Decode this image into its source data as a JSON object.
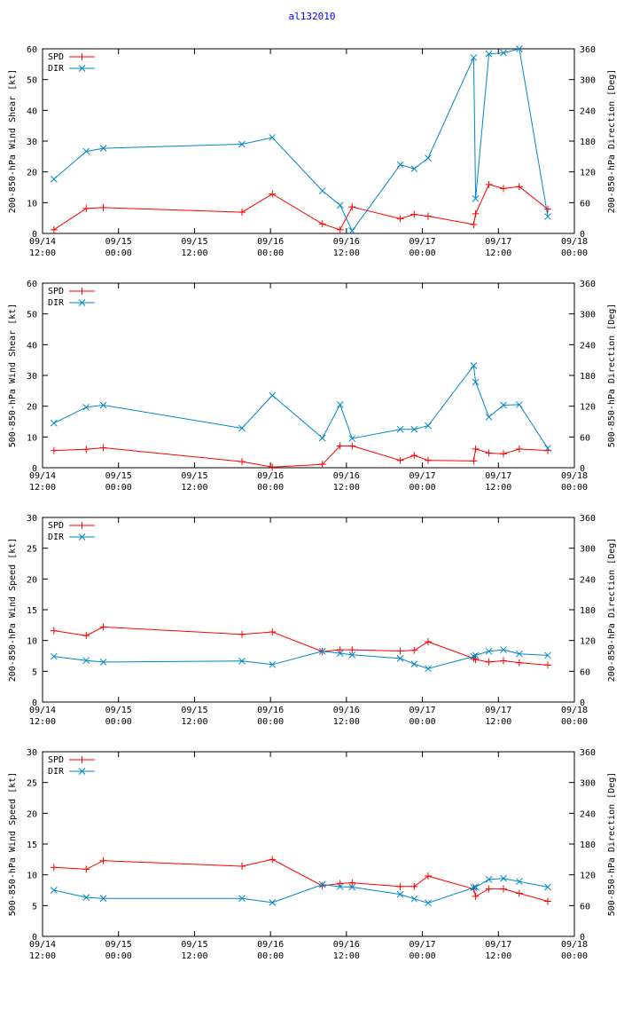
{
  "title": "al132010",
  "colors": {
    "spd": "#ff0000",
    "dir": "#0087c8",
    "axis": "#000000"
  },
  "legend": {
    "spd": "SPD",
    "dir": "DIR"
  },
  "x_ticks": [
    {
      "line1": "09/14",
      "line2": "12:00"
    },
    {
      "line1": "09/15",
      "line2": "00:00"
    },
    {
      "line1": "09/15",
      "line2": "12:00"
    },
    {
      "line1": "09/16",
      "line2": "00:00"
    },
    {
      "line1": "09/16",
      "line2": "12:00"
    },
    {
      "line1": "09/17",
      "line2": "00:00"
    },
    {
      "line1": "09/17",
      "line2": "12:00"
    },
    {
      "line1": "09/18",
      "line2": "00:00"
    }
  ],
  "chart_data": [
    {
      "type": "line",
      "ylabel": "200-850-hPa Wind Shear [kt]",
      "y2label": "200-850-hPa Direction [Deg]",
      "xlim": [
        0,
        84
      ],
      "ylim": [
        0,
        60
      ],
      "y_ticks": [
        0,
        10,
        20,
        30,
        40,
        50,
        60
      ],
      "y2lim": [
        0,
        360
      ],
      "y2_ticks": [
        0,
        60,
        120,
        180,
        240,
        300,
        360
      ],
      "series": [
        {
          "name": "SPD",
          "axis": "left",
          "x": [
            1.8,
            6.9,
            9.6,
            31.5,
            36.3,
            44.2,
            47.0,
            48.9,
            56.5,
            58.7,
            60.9,
            68.1,
            68.4,
            70.5,
            72.8,
            75.3,
            79.8
          ],
          "y": [
            1.2,
            8.1,
            8.4,
            6.9,
            12.8,
            3.1,
            1.2,
            8.6,
            4.8,
            6.2,
            5.6,
            2.9,
            6.4,
            15.9,
            14.6,
            15.2,
            7.9
          ]
        },
        {
          "name": "DIR",
          "axis": "right",
          "x": [
            1.8,
            6.9,
            9.6,
            31.5,
            36.3,
            44.2,
            47.0,
            48.9,
            56.5,
            58.7,
            60.9,
            68.1,
            68.4,
            70.5,
            72.8,
            75.3,
            79.8
          ],
          "y": [
            106,
            160,
            166,
            174,
            187,
            83,
            55,
            5,
            134,
            126,
            147,
            343,
            68,
            350,
            352,
            360,
            33
          ]
        }
      ]
    },
    {
      "type": "line",
      "ylabel": "500-850-hPa Wind Shear [kt]",
      "y2label": "500-850-hPa Direction [Deg]",
      "xlim": [
        0,
        84
      ],
      "ylim": [
        0,
        60
      ],
      "y_ticks": [
        0,
        10,
        20,
        30,
        40,
        50,
        60
      ],
      "y2lim": [
        0,
        360
      ],
      "y2_ticks": [
        0,
        60,
        120,
        180,
        240,
        300,
        360
      ],
      "series": [
        {
          "name": "SPD",
          "axis": "left",
          "x": [
            1.8,
            6.9,
            9.6,
            31.5,
            36.3,
            44.2,
            47.0,
            48.9,
            56.5,
            58.7,
            60.9,
            68.1,
            68.4,
            70.5,
            72.8,
            75.3,
            79.8
          ],
          "y": [
            5.6,
            6.0,
            6.5,
            2.0,
            0.2,
            1.1,
            7.1,
            7.1,
            2.4,
            4.0,
            2.4,
            2.2,
            6.1,
            4.8,
            4.5,
            6.1,
            5.6
          ]
        },
        {
          "name": "DIR",
          "axis": "right",
          "x": [
            1.8,
            6.9,
            9.6,
            31.5,
            36.3,
            44.2,
            47.0,
            48.9,
            56.5,
            58.7,
            60.9,
            68.1,
            68.4,
            70.5,
            72.8,
            75.3,
            79.8
          ],
          "y": [
            87,
            118,
            122,
            77,
            141,
            58,
            123,
            57,
            75,
            75,
            82,
            199,
            167,
            99,
            122,
            123,
            38
          ]
        }
      ]
    },
    {
      "type": "line",
      "ylabel": "200-850-hPa Wind Speed [kt]",
      "y2label": "200-850-hPa Direction [Deg]",
      "xlim": [
        0,
        84
      ],
      "ylim": [
        0,
        30
      ],
      "y_ticks": [
        0,
        5,
        10,
        15,
        20,
        25,
        30
      ],
      "y2lim": [
        0,
        360
      ],
      "y2_ticks": [
        0,
        60,
        120,
        180,
        240,
        300,
        360
      ],
      "series": [
        {
          "name": "SPD",
          "axis": "left",
          "x": [
            1.8,
            6.9,
            9.6,
            31.5,
            36.3,
            44.2,
            47.0,
            48.9,
            56.5,
            58.7,
            60.9,
            68.1,
            68.4,
            70.5,
            72.8,
            75.3,
            79.8
          ],
          "y": [
            11.6,
            10.8,
            12.2,
            11.0,
            11.4,
            8.2,
            8.5,
            8.5,
            8.3,
            8.4,
            9.8,
            7.1,
            6.9,
            6.5,
            6.7,
            6.4,
            6.0
          ]
        },
        {
          "name": "DIR",
          "axis": "right",
          "x": [
            1.8,
            6.9,
            9.6,
            31.5,
            36.3,
            44.2,
            47.0,
            48.9,
            56.5,
            58.7,
            60.9,
            68.1,
            68.4,
            70.5,
            72.8,
            75.3,
            79.8
          ],
          "y": [
            89,
            81,
            78,
            80,
            73,
            99,
            95,
            92,
            85,
            74,
            65,
            89,
            91,
            99,
            102,
            94,
            91
          ]
        }
      ]
    },
    {
      "type": "line",
      "ylabel": "500-850-hPa Wind Speed [kt]",
      "y2label": "500-850-hPa Direction [Deg]",
      "xlim": [
        0,
        84
      ],
      "ylim": [
        0,
        30
      ],
      "y_ticks": [
        0,
        5,
        10,
        15,
        20,
        25,
        30
      ],
      "y2lim": [
        0,
        360
      ],
      "y2_ticks": [
        0,
        60,
        120,
        180,
        240,
        300,
        360
      ],
      "series": [
        {
          "name": "SPD",
          "axis": "left",
          "x": [
            1.8,
            6.9,
            9.6,
            31.5,
            36.3,
            44.2,
            47.0,
            48.9,
            56.5,
            58.7,
            60.9,
            68.1,
            68.4,
            70.5,
            72.8,
            75.3,
            79.8
          ],
          "y": [
            11.2,
            10.9,
            12.3,
            11.4,
            12.5,
            8.2,
            8.6,
            8.7,
            8.1,
            8.1,
            9.8,
            7.7,
            6.5,
            7.7,
            7.7,
            7.0,
            5.7
          ]
        },
        {
          "name": "DIR",
          "axis": "right",
          "x": [
            1.8,
            6.9,
            9.6,
            31.5,
            36.3,
            44.2,
            47.0,
            48.9,
            56.5,
            58.7,
            60.9,
            68.1,
            68.4,
            70.5,
            72.8,
            75.3,
            79.8
          ],
          "y": [
            90,
            76,
            74,
            74,
            66,
            101,
            97,
            96,
            82,
            73,
            65,
            95,
            96,
            111,
            113,
            107,
            96
          ]
        }
      ]
    }
  ]
}
